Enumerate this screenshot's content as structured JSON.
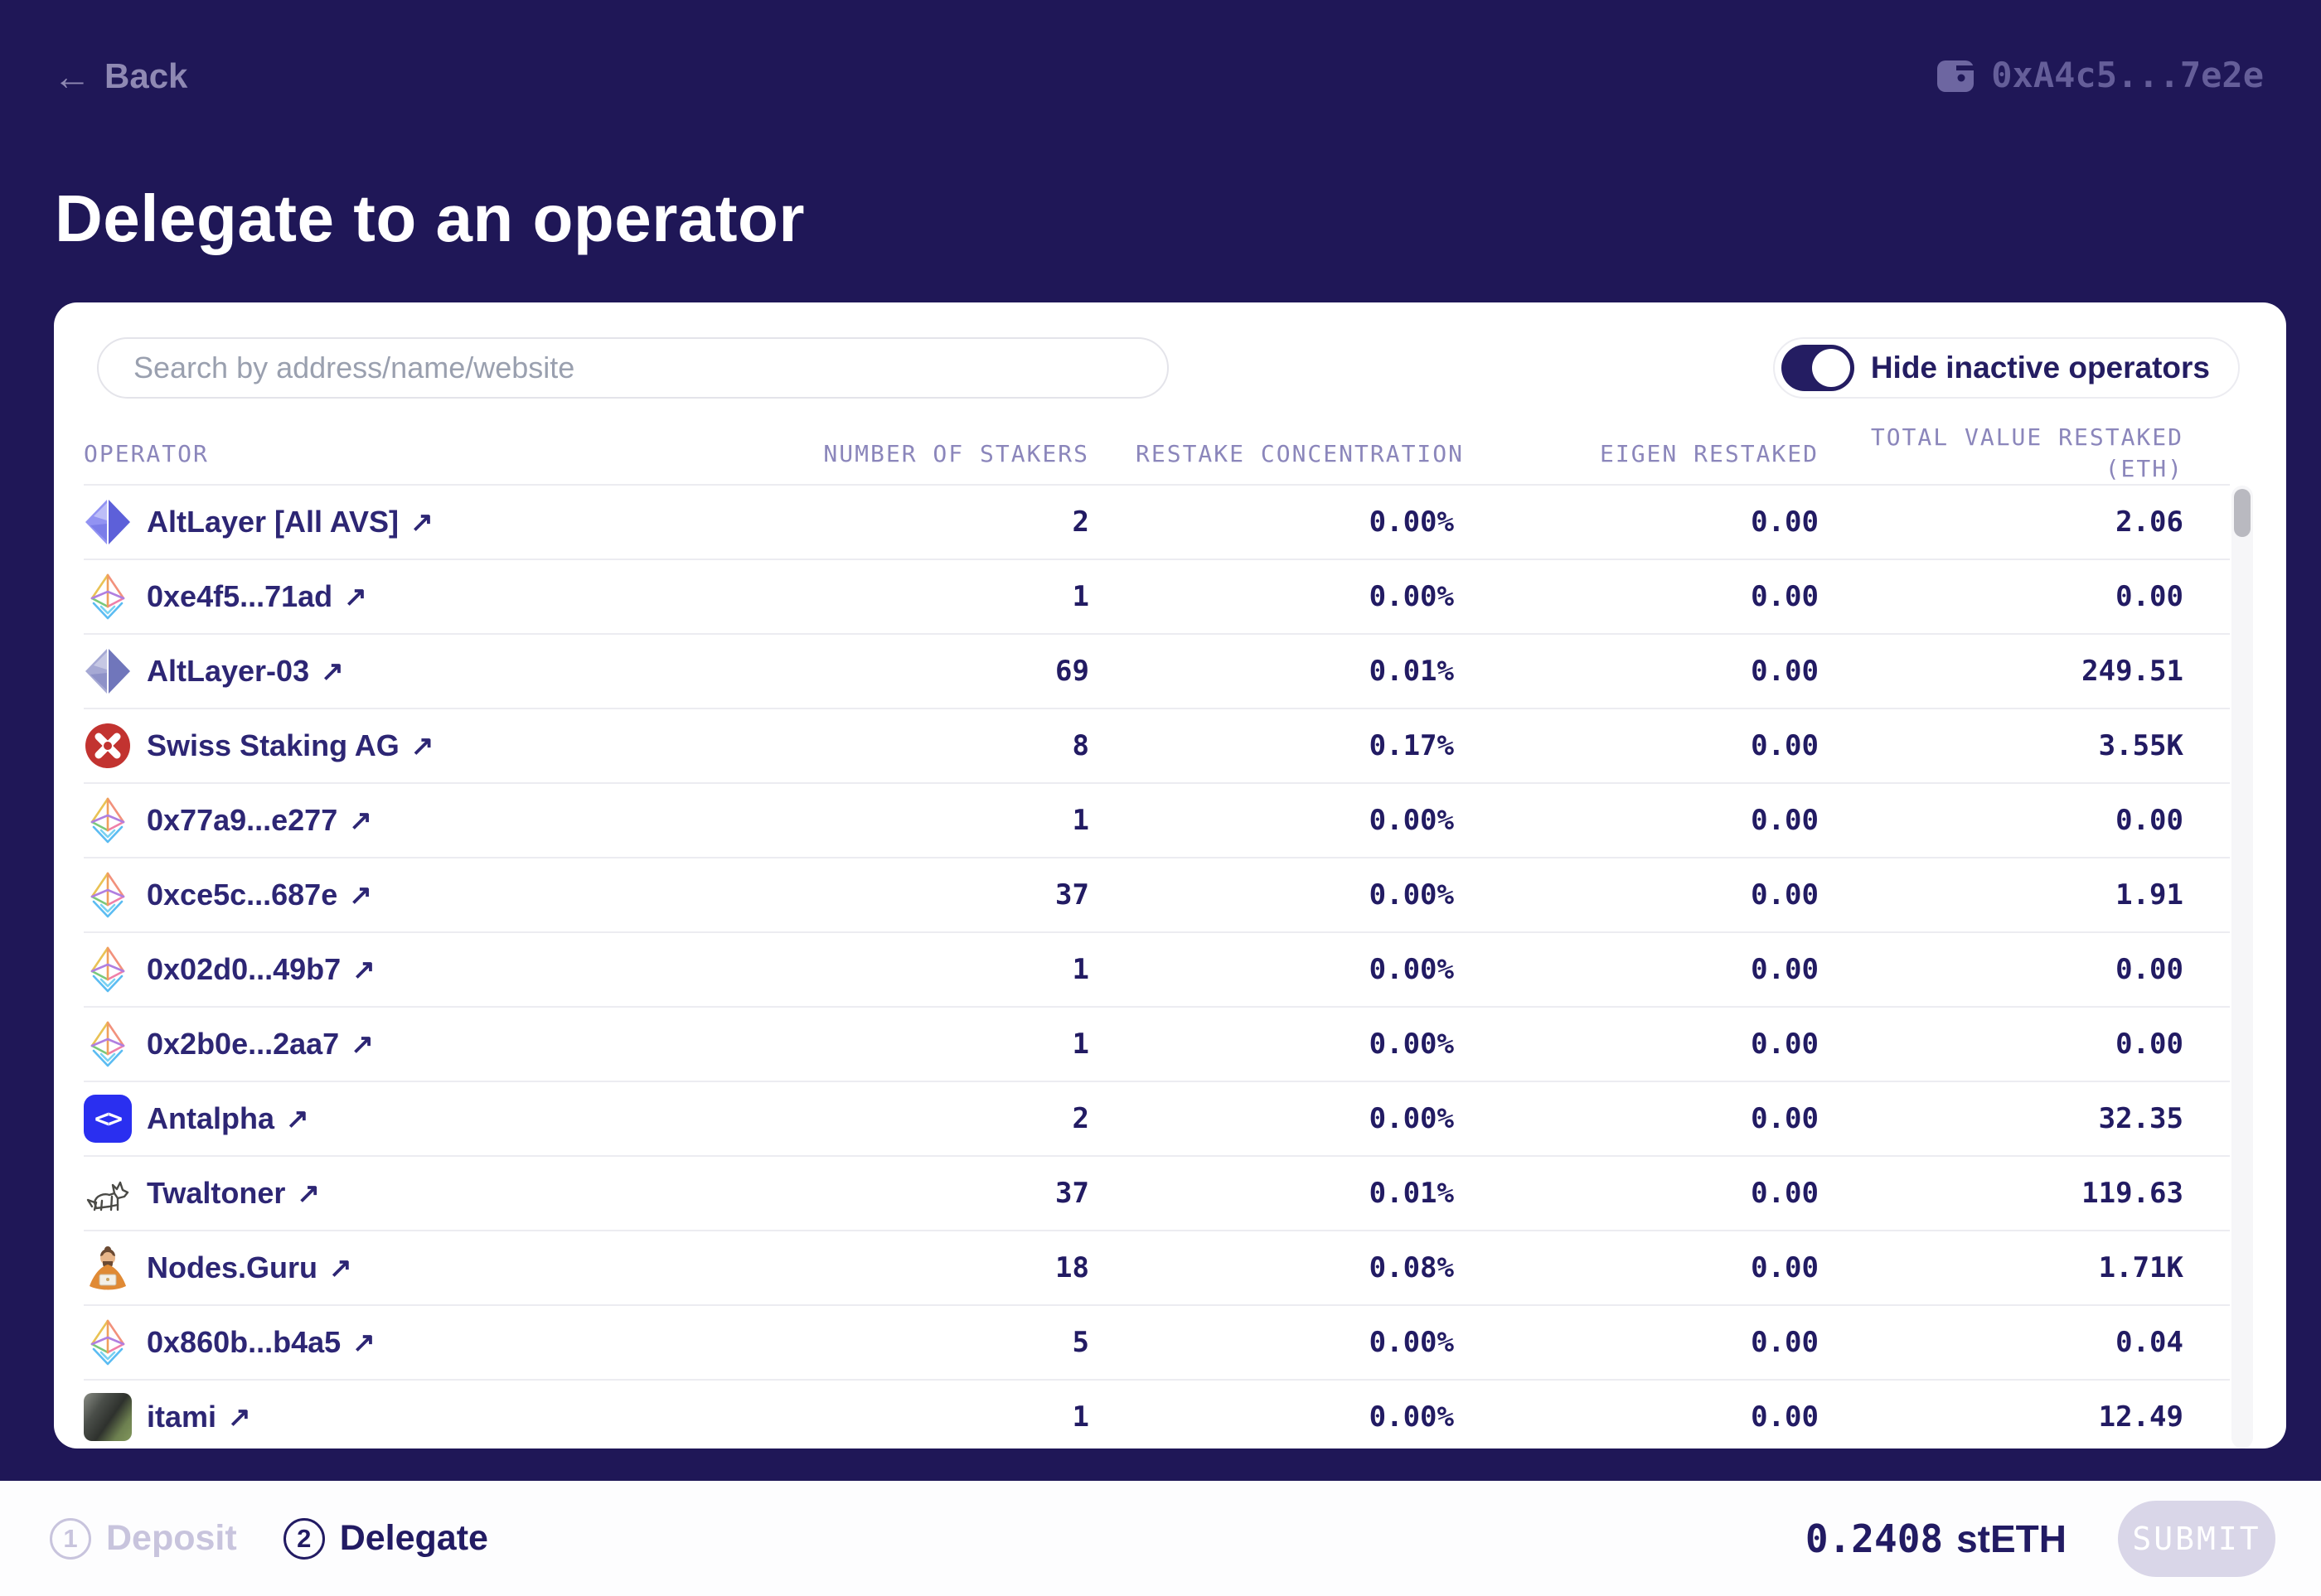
{
  "colors": {
    "background": "#1f1757",
    "card": "#ffffff",
    "primary_navy": "#241d62",
    "row_name_text": "#2d2674",
    "number_text": "#221b63",
    "header_text": "#8b86bb",
    "muted_lavender": "#8f89b3",
    "separator": "#ececf1",
    "submit_disabled_bg": "#d9d6e8",
    "antalpha_blue": "#2a2ff0",
    "swiss_red": "#c23330"
  },
  "header": {
    "back_arrow": "←",
    "back_label": "Back",
    "wallet_address": "0xA4c5...7e2e"
  },
  "page_title": "Delegate to an operator",
  "toolbar": {
    "search_placeholder": "Search by address/name/website",
    "toggle_label": "Hide inactive operators",
    "toggle_on": true
  },
  "table": {
    "link_arrow": "↗",
    "columns": {
      "operator": "OPERATOR",
      "stakers": "NUMBER OF STAKERS",
      "concentration": "RESTAKE CONCENTRATION",
      "eigen": "EIGEN RESTAKED",
      "total_line1": "TOTAL VALUE RESTAKED",
      "total_line2": "(ETH)"
    },
    "rows": [
      {
        "name": "AltLayer [All AVS]",
        "icon": "altlayer-icon",
        "stakers": "2",
        "concentration": "0.00%",
        "eigen": "0.00",
        "total": "2.06"
      },
      {
        "name": "0xe4f5...71ad",
        "icon": "eth-icon",
        "stakers": "1",
        "concentration": "0.00%",
        "eigen": "0.00",
        "total": "0.00"
      },
      {
        "name": "AltLayer-03",
        "icon": "altlayer-muted-icon",
        "stakers": "69",
        "concentration": "0.01%",
        "eigen": "0.00",
        "total": "249.51"
      },
      {
        "name": "Swiss Staking AG",
        "icon": "swiss-staking-icon",
        "stakers": "8",
        "concentration": "0.17%",
        "eigen": "0.00",
        "total": "3.55K"
      },
      {
        "name": "0x77a9...e277",
        "icon": "eth-icon",
        "stakers": "1",
        "concentration": "0.00%",
        "eigen": "0.00",
        "total": "0.00"
      },
      {
        "name": "0xce5c...687e",
        "icon": "eth-icon",
        "stakers": "37",
        "concentration": "0.00%",
        "eigen": "0.00",
        "total": "1.91"
      },
      {
        "name": "0x02d0...49b7",
        "icon": "eth-icon",
        "stakers": "1",
        "concentration": "0.00%",
        "eigen": "0.00",
        "total": "0.00"
      },
      {
        "name": "0x2b0e...2aa7",
        "icon": "eth-icon",
        "stakers": "1",
        "concentration": "0.00%",
        "eigen": "0.00",
        "total": "0.00"
      },
      {
        "name": "Antalpha",
        "icon": "antalpha-icon",
        "stakers": "2",
        "concentration": "0.00%",
        "eigen": "0.00",
        "total": "32.35"
      },
      {
        "name": "Twaltoner",
        "icon": "twaltoner-icon",
        "stakers": "37",
        "concentration": "0.01%",
        "eigen": "0.00",
        "total": "119.63"
      },
      {
        "name": "Nodes.Guru",
        "icon": "nodes-guru-icon",
        "stakers": "18",
        "concentration": "0.08%",
        "eigen": "0.00",
        "total": "1.71K"
      },
      {
        "name": "0x860b...b4a5",
        "icon": "eth-icon",
        "stakers": "5",
        "concentration": "0.00%",
        "eigen": "0.00",
        "total": "0.04"
      },
      {
        "name": "itami",
        "icon": "itami-icon",
        "stakers": "1",
        "concentration": "0.00%",
        "eigen": "0.00",
        "total": "12.49"
      }
    ]
  },
  "footer": {
    "steps": [
      {
        "number": "1",
        "label": "Deposit"
      },
      {
        "number": "2",
        "label": "Delegate"
      }
    ],
    "active_step": "2",
    "amount_value": "0.2408",
    "amount_asset": "stETH",
    "submit_label": "SUBMIT"
  }
}
